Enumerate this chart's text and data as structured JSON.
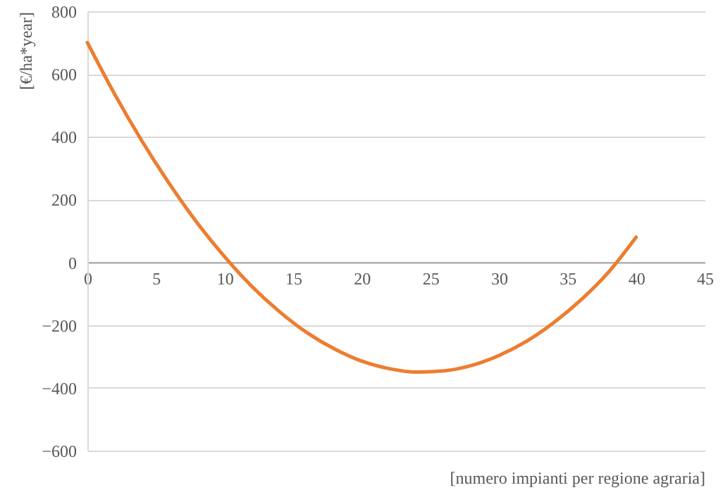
{
  "chart_data": {
    "type": "line",
    "xlabel": "[numero impianti per regione agraria]",
    "ylabel": "[€/ha*year]",
    "x": [
      0,
      2,
      4,
      6,
      8,
      10,
      12,
      14,
      16,
      18,
      20,
      22,
      24,
      26,
      28,
      30,
      32,
      34,
      36,
      38,
      40
    ],
    "series": [
      {
        "color": "#ed7d31",
        "values": [
          700,
          535,
          385,
          249,
          126,
          18,
          -77,
          -157,
          -224,
          -276,
          -315,
          -339,
          -350,
          -346,
          -329,
          -297,
          -252,
          -192,
          -119,
          -31,
          80
        ]
      }
    ],
    "xlim": [
      0,
      45
    ],
    "xticks": [
      0,
      5,
      10,
      15,
      20,
      25,
      30,
      35,
      40,
      45
    ],
    "ylim": [
      -600,
      800
    ],
    "yticks": [
      -600,
      -400,
      -200,
      0,
      200,
      400,
      600,
      800
    ],
    "grid": "y",
    "marker": "none",
    "line_style": "solid"
  }
}
